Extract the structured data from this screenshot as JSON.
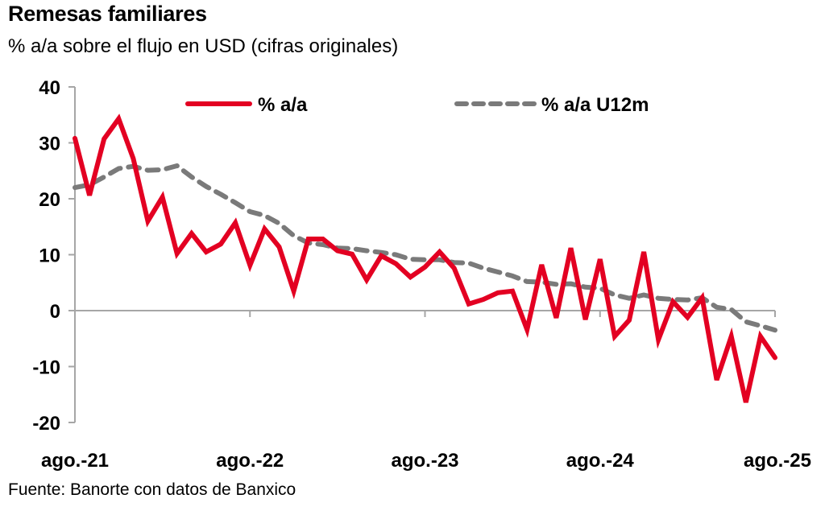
{
  "header": {
    "title": "Remesas familiares",
    "subtitle": "% a/a sobre el flujo en USD (cifras originales)"
  },
  "footer": {
    "source": "Fuente: Banorte con datos de Banxico"
  },
  "chart_data": {
    "type": "line",
    "title": "Remesas familiares",
    "subtitle": "% a/a sobre el flujo en USD (cifras originales)",
    "xlabel": "",
    "ylabel": "",
    "ylim": [
      -20,
      40
    ],
    "yticks": [
      40,
      30,
      20,
      10,
      0,
      -10,
      -20
    ],
    "x_start": "ago.-21",
    "x_end": "ago.-25",
    "x_frequency": "monthly",
    "xtick_labels": [
      "ago.-21",
      "ago.-22",
      "ago.-23",
      "ago.-24",
      "ago.-25"
    ],
    "xtick_every_n_points": 12,
    "grid": false,
    "legend_position": "top",
    "series": [
      {
        "name": "% a/a",
        "color": "#e30022",
        "style": "solid",
        "values": [
          30.8,
          20.6,
          30.7,
          34.3,
          27.2,
          16.0,
          20.3,
          10.2,
          13.8,
          10.5,
          11.9,
          15.7,
          8.1,
          14.6,
          11.4,
          3.5,
          12.8,
          12.8,
          10.7,
          10.1,
          5.5,
          9.8,
          8.4,
          6.0,
          7.8,
          10.5,
          7.6,
          1.2,
          2.0,
          3.2,
          3.5,
          -3.4,
          8.2,
          -1.3,
          11.2,
          -1.6,
          9.2,
          -4.6,
          -1.7,
          10.5,
          -5.2,
          1.6,
          -1.2,
          2.3,
          -12.4,
          -4.6,
          -16.4,
          -4.6,
          -8.4
        ]
      },
      {
        "name": "% a/a U12m",
        "color": "#7a7a7a",
        "style": "dashed",
        "values": [
          22.0,
          22.5,
          23.9,
          25.4,
          25.8,
          25.1,
          25.2,
          25.9,
          23.9,
          22.2,
          20.8,
          19.3,
          17.7,
          17.0,
          15.6,
          13.4,
          12.1,
          11.8,
          11.2,
          11.1,
          10.7,
          10.4,
          10.0,
          9.2,
          9.1,
          9.1,
          8.6,
          8.5,
          7.6,
          6.9,
          6.2,
          5.2,
          5.1,
          4.7,
          4.8,
          4.2,
          4.0,
          2.8,
          2.2,
          2.8,
          2.2,
          2.0,
          1.9,
          2.3,
          0.6,
          0.2,
          -2.0,
          -2.7,
          -3.5
        ]
      }
    ]
  }
}
